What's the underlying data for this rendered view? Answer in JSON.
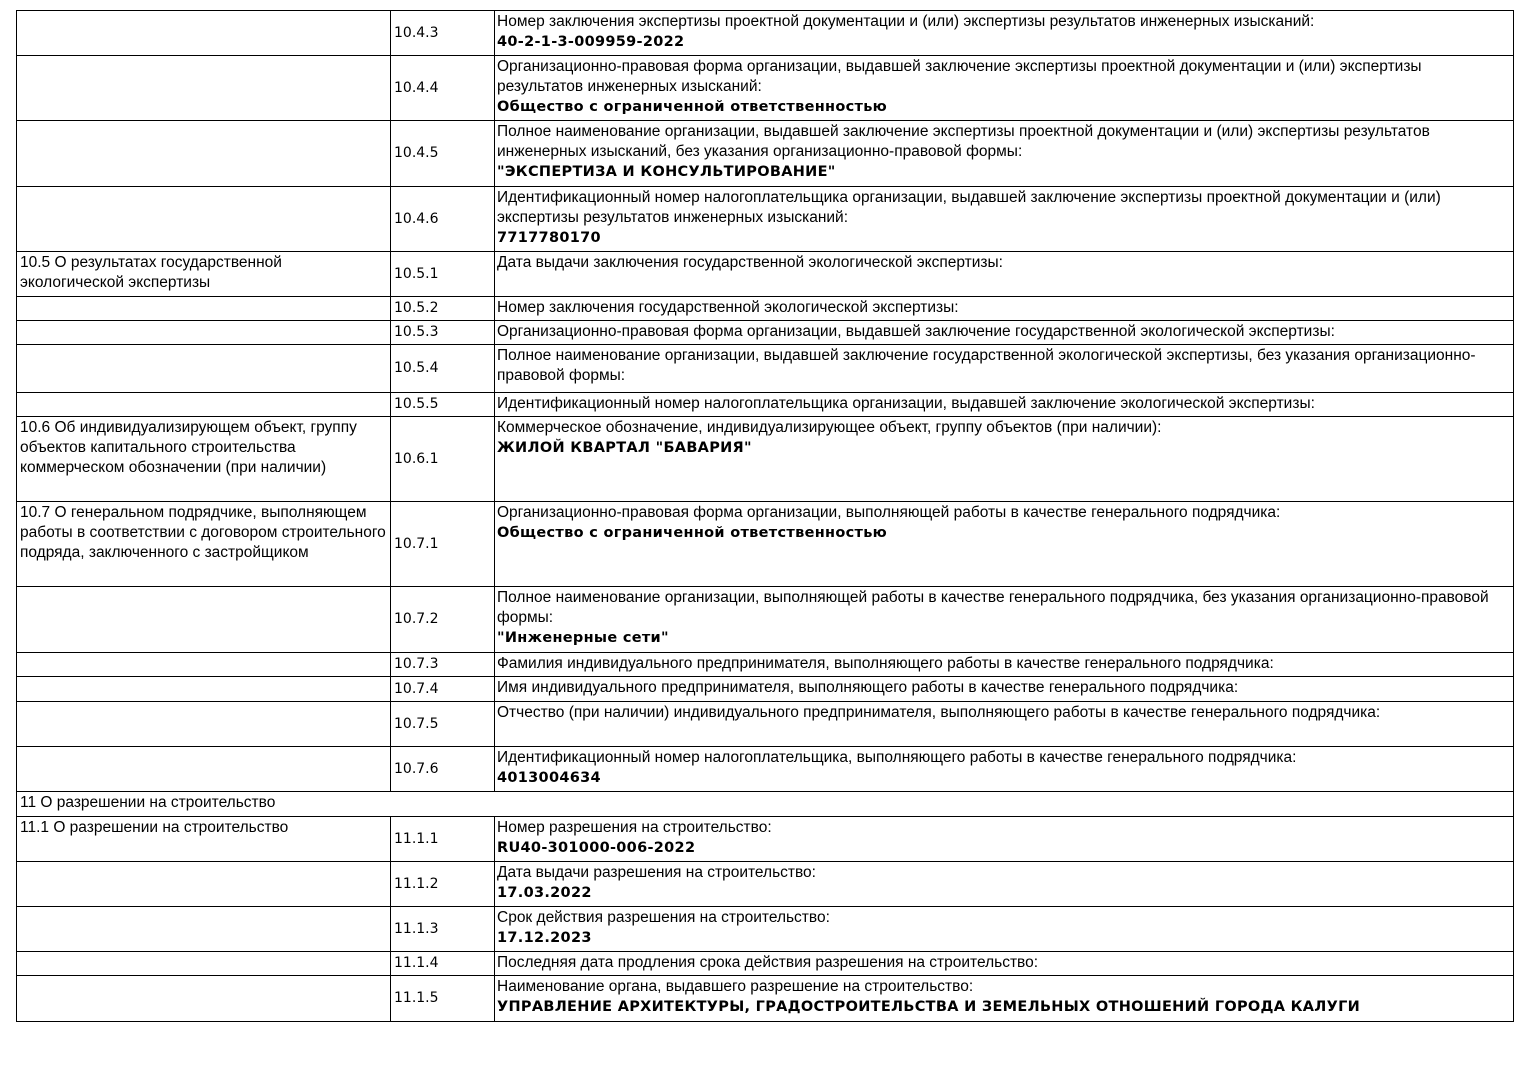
{
  "rows": [
    {
      "section": "",
      "code": "10.4.3",
      "label": "Номер заключения экспертизы проектной документации и (или) экспертизы результатов инженерных изысканий:",
      "value": "40-2-1-3-009959-2022"
    },
    {
      "section": "",
      "code": "10.4.4",
      "label": "Организационно-правовая форма организации, выдавшей заключение экспертизы проектной документации и (или) экспертизы результатов инженерных изысканий:",
      "value": "Общество с ограниченной ответственностью"
    },
    {
      "section": "",
      "code": "10.4.5",
      "label": "Полное наименование организации, выдавшей заключение экспертизы проектной документации и (или) экспертизы результатов инженерных изысканий, без указания организационно-правовой формы:",
      "value": "\"ЭКСПЕРТИЗА И КОНСУЛЬТИРОВАНИЕ\""
    },
    {
      "section": "",
      "code": "10.4.6",
      "label": "Идентификационный номер налогоплательщика организации, выдавшей заключение экспертизы проектной документации и (или) экспертизы результатов инженерных изысканий:",
      "value": "7717780170"
    },
    {
      "section": "10.5 О результатах государственной экологической экспертизы",
      "code": "10.5.1",
      "label": "Дата выдачи заключения государственной экологической экспертизы:",
      "value": ""
    },
    {
      "section": "",
      "code": "10.5.2",
      "label": "Номер заключения государственной экологической экспертизы:",
      "value": ""
    },
    {
      "section": "",
      "code": "10.5.3",
      "label": "Организационно-правовая форма организации, выдавшей заключение государственной экологической экспертизы:",
      "value": ""
    },
    {
      "section": "",
      "code": "10.5.4",
      "label": "Полное наименование организации, выдавшей заключение государственной экологической экспертизы, без указания организационно-правовой формы:",
      "value": ""
    },
    {
      "section": "",
      "code": "10.5.5",
      "label": "Идентификационный номер налогоплательщика организации, выдавшей заключение экологической экспертизы:",
      "value": ""
    },
    {
      "section": "10.6 Об индивидуализирующем объект, группу объектов капитального строительства коммерческом обозначении (при наличии)",
      "code": "10.6.1",
      "label": "Коммерческое обозначение, индивидуализирующее объект, группу объектов (при наличии):",
      "value": "ЖИЛОЙ КВАРТАЛ \"БАВАРИЯ\""
    },
    {
      "section": "10.7 О генеральном подрядчике, выполняющем работы в соответствии с договором строительного подряда, заключенного с застройщиком",
      "code": "10.7.1",
      "label": "Организационно-правовая форма организации, выполняющей работы в качестве генерального подрядчика:",
      "value": "Общество с ограниченной ответственностью"
    },
    {
      "section": "",
      "code": "10.7.2",
      "label": "Полное наименование организации, выполняющей работы в качестве генерального подрядчика, без указания организационно-правовой формы:",
      "value": "\"Инженерные сети\""
    },
    {
      "section": "",
      "code": "10.7.3",
      "label": "Фамилия индивидуального предпринимателя, выполняющего работы в качестве генерального подрядчика:",
      "value": ""
    },
    {
      "section": "",
      "code": "10.7.4",
      "label": "Имя индивидуального предпринимателя, выполняющего работы в качестве генерального подрядчика:",
      "value": ""
    },
    {
      "section": "",
      "code": "10.7.5",
      "label": "Отчество (при наличии) индивидуального предпринимателя, выполняющего работы в качестве генерального подрядчика:",
      "value": ""
    },
    {
      "section": "",
      "code": "10.7.6",
      "label": "Идентификационный номер налогоплательщика, выполняющего работы в качестве генерального подрядчика:",
      "value": "4013004634"
    },
    {
      "heading": "11 О разрешении на строительство"
    },
    {
      "section": "11.1 О разрешении на строительство",
      "code": "11.1.1",
      "label": "Номер разрешения на строительство:",
      "value": "RU40-301000-006-2022"
    },
    {
      "section": "",
      "code": "11.1.2",
      "label": "Дата выдачи разрешения на строительство:",
      "value": "17.03.2022"
    },
    {
      "section": "",
      "code": "11.1.3",
      "label": "Срок действия разрешения на строительство:",
      "value": "17.12.2023"
    },
    {
      "section": "",
      "code": "11.1.4",
      "label": "Последняя дата продления срока действия разрешения на строительство:",
      "value": ""
    },
    {
      "section": "",
      "code": "11.1.5",
      "label": "Наименование органа, выдавшего разрешение на строительство:",
      "value": "УПРАВЛЕНИЕ АРХИТЕКТУРЫ, ГРАДОСТРОИТЕЛЬСТВА И ЗЕМЕЛЬНЫХ ОТНОШЕНИЙ ГОРОДА КАЛУГИ"
    }
  ]
}
